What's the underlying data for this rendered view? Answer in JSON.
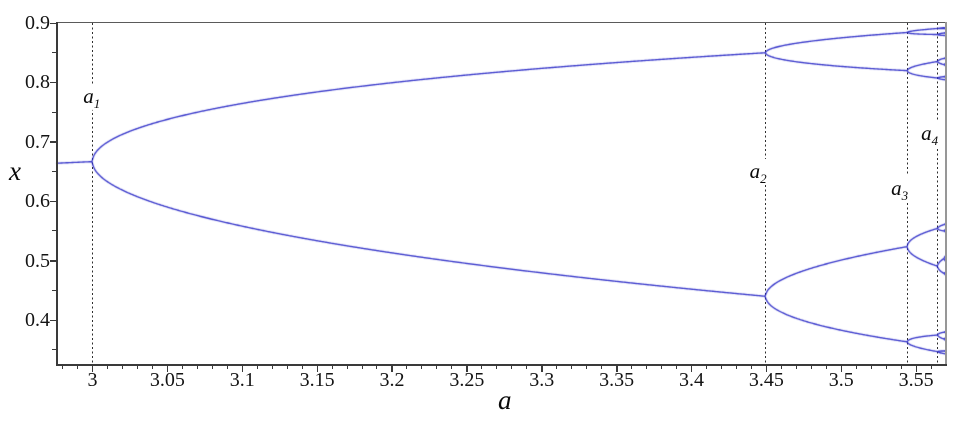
{
  "chart_data": {
    "type": "scatter",
    "subtype": "bifurcation-diagram",
    "title": "",
    "xlabel": "a",
    "ylabel": "x",
    "x_range": [
      2.977,
      3.5693
    ],
    "y_range": [
      0.326,
      0.9
    ],
    "grid": false,
    "series_color": "#3434c9",
    "axis_color": "#3a3a3a",
    "x_ticks": {
      "major": [
        3.0,
        3.05,
        3.1,
        3.15,
        3.2,
        3.25,
        3.3,
        3.35,
        3.4,
        3.45,
        3.5,
        3.55
      ],
      "labels": [
        "3",
        "3.05",
        "3.1",
        "3.15",
        "3.2",
        "3.25",
        "3.3",
        "3.35",
        "3.4",
        "3.45",
        "3.5",
        "3.55"
      ],
      "minor_step": 0.01
    },
    "y_ticks": {
      "major": [
        0.4,
        0.5,
        0.6,
        0.7,
        0.8,
        0.9
      ],
      "labels": [
        "0.4",
        "0.5",
        "0.6",
        "0.7",
        "0.8",
        "0.9"
      ],
      "minor_step": 0.05
    },
    "map": {
      "equation": "x[n+1] = a*x[n]*(1-x[n])",
      "transient_iterations": 9000,
      "samples_per_column": 160
    },
    "bifurcations": [
      {
        "text": "a",
        "sub": "1",
        "a": 3.0,
        "label_pos": {
          "a": 2.9995,
          "x": 0.776
        }
      },
      {
        "text": "a",
        "sub": "2",
        "a": 3.4495,
        "label_pos": {
          "a": 3.4445,
          "x": 0.649
        }
      },
      {
        "text": "a",
        "sub": "3",
        "a": 3.5441,
        "label_pos": {
          "a": 3.539,
          "x": 0.62
        }
      },
      {
        "text": "a",
        "sub": "4",
        "a": 3.5644,
        "label_pos": {
          "a": 3.559,
          "x": 0.713
        }
      }
    ],
    "key_points": {
      "period1_branch": [
        {
          "a": 2.977,
          "x": 0.664
        },
        {
          "a": 3.0,
          "x": 0.667
        }
      ],
      "period2_values_at_a2": [
        0.85,
        0.44
      ],
      "period4_values_at_a3": [
        0.887,
        0.825,
        0.525,
        0.368
      ],
      "period8_values_near_right_edge": [
        0.889,
        0.879,
        0.868,
        0.825,
        0.546,
        0.513,
        0.479,
        0.354
      ]
    }
  }
}
